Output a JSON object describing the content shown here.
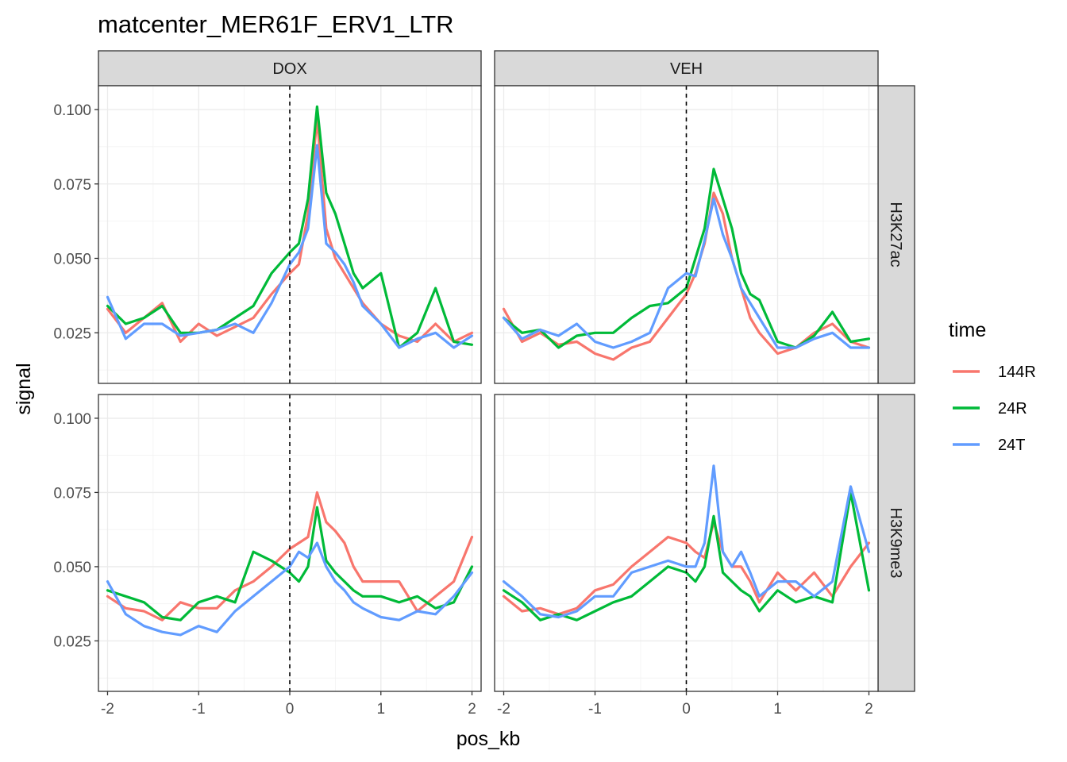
{
  "chart_data": {
    "type": "line",
    "title": "matcenter_MER61F_ERV1_LTR",
    "xlabel": "pos_kb",
    "ylabel": "signal",
    "xlim": [
      -2.1,
      2.1
    ],
    "ylim": [
      0.008,
      0.108
    ],
    "x_ticks": [
      -2,
      -1,
      0,
      1,
      2
    ],
    "x_tick_labels": [
      "-2",
      "-1",
      "0",
      "1",
      "2"
    ],
    "y_ticks": [
      0.025,
      0.05,
      0.075,
      0.1
    ],
    "y_tick_labels": [
      "0.025",
      "0.050",
      "0.075",
      "0.100"
    ],
    "vline_x": 0,
    "grid": true,
    "legend": {
      "title": "time",
      "placement": "right"
    },
    "columns": [
      "DOX",
      "VEH"
    ],
    "rows": [
      "H3K27ac",
      "H3K9me3"
    ],
    "series_names": [
      "144R",
      "24R",
      "24T"
    ],
    "series_colors": [
      "#F8766D",
      "#00BA38",
      "#619CFF"
    ],
    "x": [
      -2.0,
      -1.8,
      -1.6,
      -1.4,
      -1.2,
      -1.0,
      -0.8,
      -0.6,
      -0.4,
      -0.2,
      0.0,
      0.1,
      0.2,
      0.3,
      0.4,
      0.5,
      0.6,
      0.7,
      0.8,
      1.0,
      1.2,
      1.4,
      1.6,
      1.8,
      2.0
    ],
    "panels": [
      {
        "column": "DOX",
        "row": "H3K27ac",
        "series": [
          {
            "name": "144R",
            "values": [
              0.033,
              0.025,
              0.03,
              0.035,
              0.022,
              0.028,
              0.024,
              0.027,
              0.03,
              0.038,
              0.045,
              0.048,
              0.065,
              0.097,
              0.06,
              0.05,
              0.045,
              0.04,
              0.035,
              0.028,
              0.024,
              0.022,
              0.028,
              0.022,
              0.025
            ]
          },
          {
            "name": "24R",
            "values": [
              0.034,
              0.028,
              0.03,
              0.034,
              0.025,
              0.025,
              0.026,
              0.03,
              0.034,
              0.045,
              0.052,
              0.055,
              0.07,
              0.101,
              0.072,
              0.065,
              0.055,
              0.045,
              0.04,
              0.045,
              0.02,
              0.025,
              0.04,
              0.022,
              0.021
            ]
          },
          {
            "name": "24T",
            "values": [
              0.037,
              0.023,
              0.028,
              0.028,
              0.024,
              0.025,
              0.026,
              0.028,
              0.025,
              0.035,
              0.048,
              0.052,
              0.06,
              0.088,
              0.055,
              0.052,
              0.048,
              0.042,
              0.034,
              0.028,
              0.02,
              0.023,
              0.025,
              0.02,
              0.024
            ]
          }
        ]
      },
      {
        "column": "VEH",
        "row": "H3K27ac",
        "series": [
          {
            "name": "144R",
            "values": [
              0.033,
              0.022,
              0.025,
              0.021,
              0.022,
              0.018,
              0.016,
              0.02,
              0.022,
              0.03,
              0.038,
              0.045,
              0.055,
              0.072,
              0.065,
              0.05,
              0.04,
              0.03,
              0.025,
              0.018,
              0.02,
              0.025,
              0.028,
              0.022,
              0.02
            ]
          },
          {
            "name": "24R",
            "values": [
              0.03,
              0.025,
              0.026,
              0.02,
              0.024,
              0.025,
              0.025,
              0.03,
              0.034,
              0.035,
              0.04,
              0.05,
              0.06,
              0.08,
              0.07,
              0.06,
              0.045,
              0.038,
              0.036,
              0.022,
              0.02,
              0.024,
              0.032,
              0.022,
              0.023
            ]
          },
          {
            "name": "24T",
            "values": [
              0.03,
              0.023,
              0.026,
              0.024,
              0.028,
              0.022,
              0.02,
              0.022,
              0.025,
              0.04,
              0.045,
              0.044,
              0.056,
              0.07,
              0.058,
              0.05,
              0.04,
              0.035,
              0.03,
              0.02,
              0.02,
              0.023,
              0.025,
              0.02,
              0.02
            ]
          }
        ]
      },
      {
        "column": "DOX",
        "row": "H3K9me3",
        "series": [
          {
            "name": "144R",
            "values": [
              0.04,
              0.036,
              0.035,
              0.032,
              0.038,
              0.036,
              0.036,
              0.042,
              0.045,
              0.05,
              0.056,
              0.058,
              0.06,
              0.075,
              0.065,
              0.062,
              0.058,
              0.05,
              0.045,
              0.045,
              0.045,
              0.035,
              0.04,
              0.045,
              0.06
            ]
          },
          {
            "name": "24R",
            "values": [
              0.042,
              0.04,
              0.038,
              0.033,
              0.032,
              0.038,
              0.04,
              0.038,
              0.055,
              0.052,
              0.048,
              0.045,
              0.05,
              0.07,
              0.052,
              0.048,
              0.045,
              0.042,
              0.04,
              0.04,
              0.038,
              0.04,
              0.036,
              0.038,
              0.05
            ]
          },
          {
            "name": "24T",
            "values": [
              0.045,
              0.034,
              0.03,
              0.028,
              0.027,
              0.03,
              0.028,
              0.035,
              0.04,
              0.045,
              0.05,
              0.055,
              0.053,
              0.058,
              0.05,
              0.045,
              0.042,
              0.038,
              0.036,
              0.033,
              0.032,
              0.035,
              0.034,
              0.04,
              0.048
            ]
          }
        ]
      },
      {
        "column": "VEH",
        "row": "H3K9me3",
        "series": [
          {
            "name": "144R",
            "values": [
              0.04,
              0.035,
              0.036,
              0.034,
              0.036,
              0.042,
              0.044,
              0.05,
              0.055,
              0.06,
              0.058,
              0.055,
              0.053,
              0.065,
              0.055,
              0.05,
              0.05,
              0.045,
              0.038,
              0.048,
              0.042,
              0.048,
              0.04,
              0.05,
              0.058
            ]
          },
          {
            "name": "24R",
            "values": [
              0.042,
              0.038,
              0.032,
              0.034,
              0.032,
              0.035,
              0.038,
              0.04,
              0.045,
              0.05,
              0.048,
              0.045,
              0.05,
              0.067,
              0.048,
              0.045,
              0.042,
              0.04,
              0.035,
              0.042,
              0.038,
              0.04,
              0.038,
              0.075,
              0.042
            ]
          },
          {
            "name": "24T",
            "values": [
              0.045,
              0.04,
              0.034,
              0.033,
              0.035,
              0.04,
              0.04,
              0.048,
              0.05,
              0.052,
              0.05,
              0.05,
              0.058,
              0.084,
              0.055,
              0.05,
              0.055,
              0.048,
              0.04,
              0.045,
              0.045,
              0.04,
              0.045,
              0.077,
              0.055
            ]
          }
        ]
      }
    ]
  }
}
